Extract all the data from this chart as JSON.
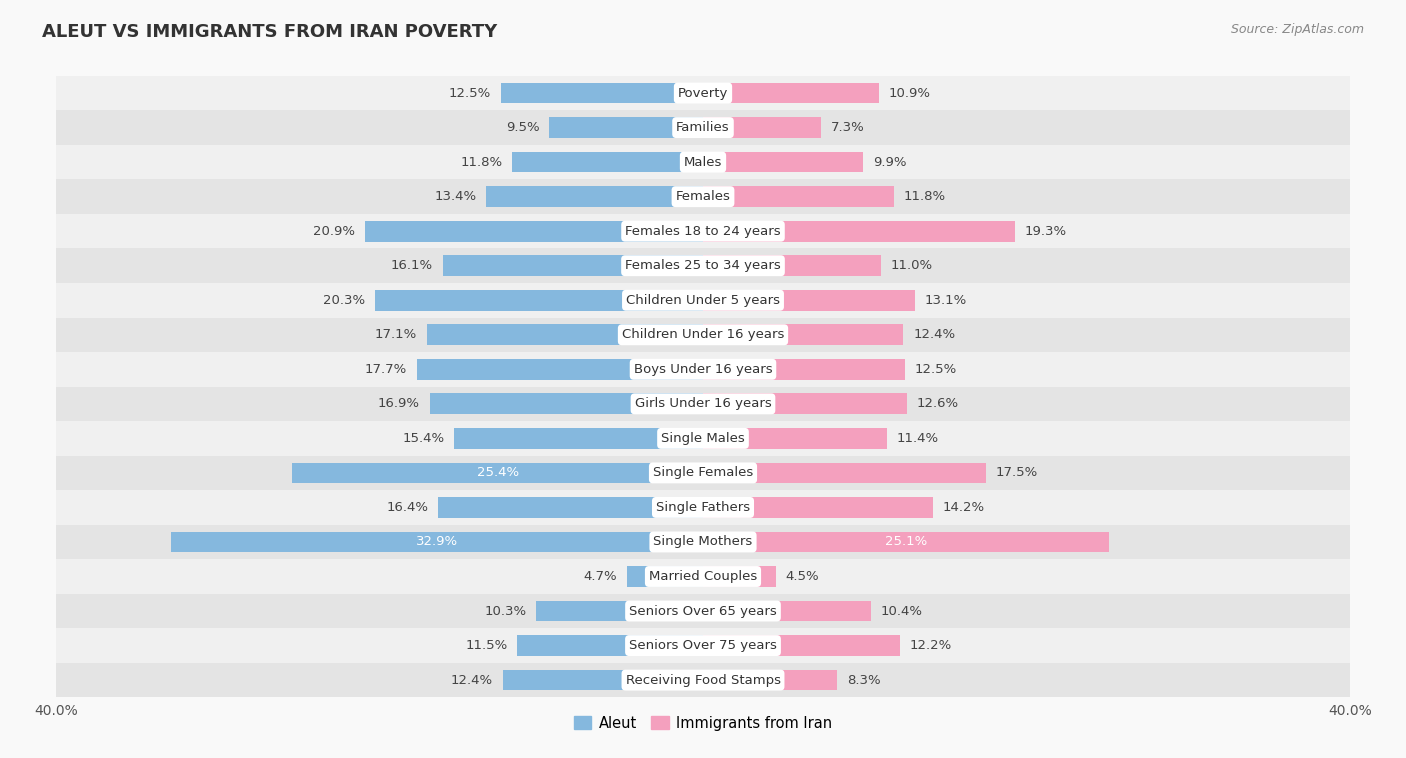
{
  "title": "ALEUT VS IMMIGRANTS FROM IRAN POVERTY",
  "source": "Source: ZipAtlas.com",
  "categories": [
    "Poverty",
    "Families",
    "Males",
    "Females",
    "Females 18 to 24 years",
    "Females 25 to 34 years",
    "Children Under 5 years",
    "Children Under 16 years",
    "Boys Under 16 years",
    "Girls Under 16 years",
    "Single Males",
    "Single Females",
    "Single Fathers",
    "Single Mothers",
    "Married Couples",
    "Seniors Over 65 years",
    "Seniors Over 75 years",
    "Receiving Food Stamps"
  ],
  "aleut_values": [
    12.5,
    9.5,
    11.8,
    13.4,
    20.9,
    16.1,
    20.3,
    17.1,
    17.7,
    16.9,
    15.4,
    25.4,
    16.4,
    32.9,
    4.7,
    10.3,
    11.5,
    12.4
  ],
  "iran_values": [
    10.9,
    7.3,
    9.9,
    11.8,
    19.3,
    11.0,
    13.1,
    12.4,
    12.5,
    12.6,
    11.4,
    17.5,
    14.2,
    25.1,
    4.5,
    10.4,
    12.2,
    8.3
  ],
  "aleut_color": "#85b8de",
  "iran_color": "#f4a0be",
  "xlim": 40.0,
  "bg_color": "#f0f0f0",
  "row_color_odd": "#e8e8e8",
  "row_color_even": "#f8f8f8",
  "legend_labels": [
    "Aleut",
    "Immigrants from Iran"
  ],
  "bar_height": 0.6,
  "label_fontsize": 9.5,
  "value_fontsize": 9.5
}
